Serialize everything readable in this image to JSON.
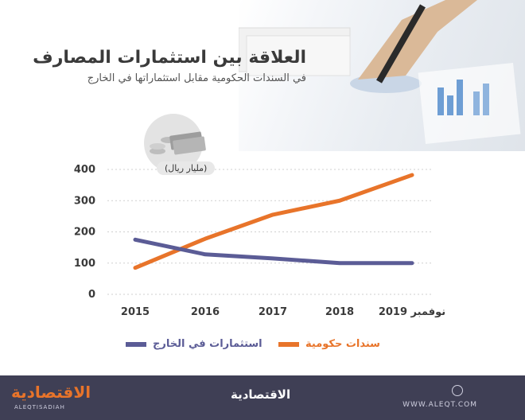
{
  "title": "العلاقة بين استثمارات المصارف",
  "subtitle": "في السندات الحكومية مقابل استثماراتها في الخارج",
  "unit_label": "(مليار ريال)",
  "colors": {
    "government_bonds": "#e8742a",
    "foreign_investments": "#5b5c96",
    "grid": "#cfcfcf"
  },
  "footer": {
    "brand_left": "الاقتصادية",
    "brand_left_sub": "ALEQTISADIAH",
    "brand_center": "الاقتصادية",
    "url": "WWW.ALEQT.COM"
  },
  "chart_data": {
    "type": "line",
    "categories": [
      "2015",
      "2016",
      "2017",
      "2018",
      "نوفمبر 2019"
    ],
    "y_ticks": [
      0,
      100,
      200,
      300,
      400
    ],
    "ylim": [
      0,
      400
    ],
    "grid": true,
    "legend_position": "bottom",
    "series": [
      {
        "name": "سندات حكومية",
        "key": "government_bonds",
        "values": [
          85,
          178,
          255,
          300,
          382
        ]
      },
      {
        "name": "استثمارات في الخارج",
        "key": "foreign_investments",
        "values": [
          175,
          128,
          115,
          100,
          100
        ]
      }
    ]
  }
}
